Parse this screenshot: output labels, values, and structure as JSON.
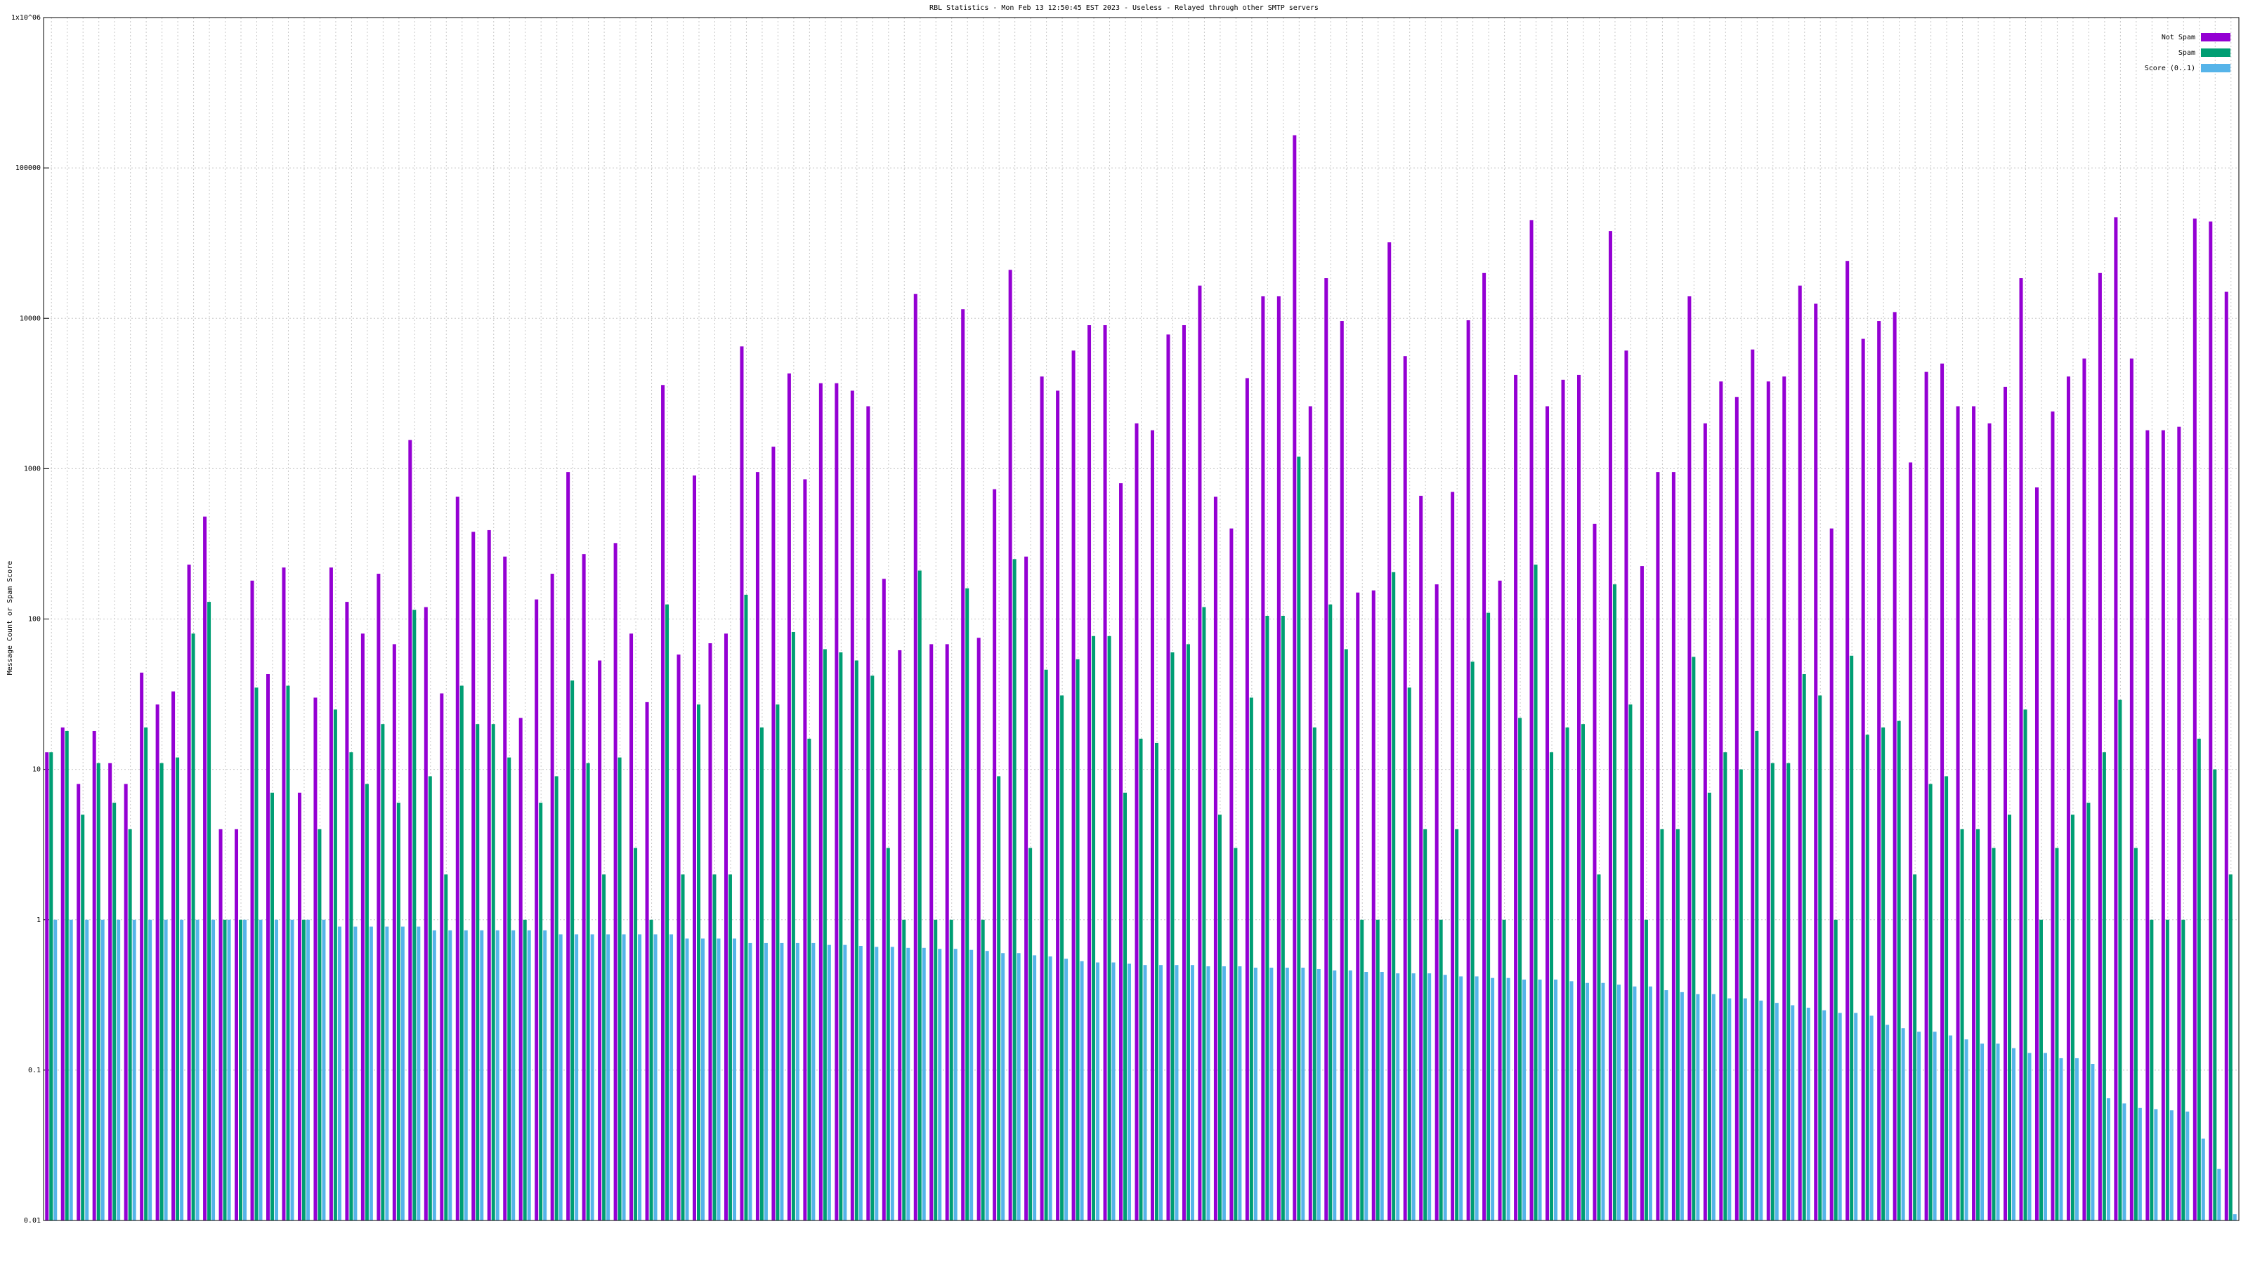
{
  "chart_data": {
    "type": "bar",
    "title": "RBL Statistics - Mon Feb 13 12:50:45 EST 2023 - Useless - Relayed through other SMTP servers",
    "y_label": "Message Count or Spam Score",
    "log_scale": true,
    "grid": true,
    "legend": "top right",
    "ylim": [
      0.01,
      1000000
    ],
    "yticks": [
      0.01,
      0.1,
      1,
      10,
      100,
      1000,
      10000,
      100000,
      {
        "value": 1000000,
        "label": "1x10^06"
      }
    ],
    "categories": [
      null,
      null,
      null,
      null,
      null,
      null,
      null,
      null,
      null,
      null,
      null,
      null,
      null,
      null,
      null,
      null,
      null,
      null,
      null,
      null,
      null,
      null,
      null,
      null,
      null,
      null,
      null,
      null,
      null,
      null,
      null,
      null,
      null,
      null,
      null,
      null,
      null,
      null,
      null,
      null,
      null,
      null,
      null,
      null,
      null,
      null,
      null,
      null,
      null,
      null,
      null,
      null,
      null,
      null,
      null,
      null,
      null,
      null,
      null,
      null,
      null,
      null,
      null,
      null,
      null,
      null,
      null,
      null,
      null,
      null,
      null,
      null,
      null,
      null,
      null,
      null,
      null,
      null,
      null,
      null,
      null,
      null,
      null,
      null,
      null,
      null,
      null,
      null,
      null,
      null,
      null,
      null,
      null,
      null,
      null,
      null,
      null,
      null,
      null,
      null,
      null,
      null,
      null,
      null,
      null,
      null,
      null,
      null,
      null,
      null,
      null,
      null,
      null,
      null,
      null,
      null,
      null,
      null,
      null,
      null,
      null,
      null,
      null,
      null,
      null,
      null,
      null,
      null,
      null,
      null,
      null,
      null,
      null,
      null,
      null,
      null,
      null,
      null,
      null
    ],
    "series": [
      {
        "name": "Not Spam",
        "color": "#9400d3",
        "values": [
          13,
          19,
          8,
          18,
          11,
          8,
          44,
          27,
          33,
          230,
          480,
          4,
          4,
          180,
          43,
          220,
          7,
          30,
          220,
          130,
          80,
          200,
          68,
          1550,
          120,
          32,
          650,
          380,
          390,
          260,
          22,
          135,
          200,
          950,
          270,
          53,
          320,
          80,
          28,
          3600,
          58,
          900,
          69,
          80,
          6500,
          950,
          1400,
          4300,
          850,
          3700,
          3700,
          3300,
          2600,
          185,
          62,
          14500,
          68,
          68,
          11500,
          75,
          730,
          21000,
          260,
          4100,
          3300,
          6100,
          9000,
          9000,
          800,
          2000,
          1800,
          7800,
          9000,
          16500,
          650,
          400,
          4000,
          14000,
          14000,
          165000,
          2600,
          18500,
          9600,
          150,
          155,
          32000,
          5600,
          660,
          170,
          700,
          9700,
          20000,
          180,
          4200,
          45000,
          2600,
          3900,
          4200,
          430,
          38000,
          6100,
          225,
          950,
          950,
          14000,
          2000,
          3800,
          3000,
          6200,
          3800,
          4100,
          16500,
          12500,
          400,
          24000,
          7300,
          9600,
          11000,
          1100,
          4400,
          5000,
          2600,
          2600,
          2000,
          3500,
          18500,
          750,
          2400,
          4100,
          5400,
          20000,
          47000,
          5400,
          1800,
          1800,
          1900,
          46000,
          44000,
          15000
        ]
      },
      {
        "name": "Spam",
        "color": "#009e73",
        "values": [
          13,
          18,
          5,
          11,
          6,
          4,
          19,
          11,
          12,
          80,
          130,
          1,
          1,
          35,
          7,
          36,
          1,
          4,
          25,
          13,
          8,
          20,
          6,
          115,
          9,
          2,
          36,
          20,
          20,
          12,
          1,
          6,
          9,
          39,
          11,
          2,
          12,
          3,
          1,
          125,
          2,
          27,
          2,
          2,
          145,
          19,
          27,
          82,
          16,
          63,
          60,
          53,
          42,
          3,
          1,
          210,
          1,
          1,
          160,
          1,
          9,
          250,
          3,
          46,
          31,
          54,
          77,
          77,
          7,
          16,
          15,
          60,
          68,
          120,
          5,
          3,
          30,
          105,
          105,
          1200,
          19,
          125,
          63,
          1,
          1,
          205,
          35,
          4,
          1,
          4,
          52,
          110,
          1,
          22,
          230,
          13,
          19,
          20,
          2,
          170,
          27,
          1,
          4,
          4,
          56,
          7,
          13,
          10,
          18,
          11,
          11,
          43,
          31,
          1,
          57,
          17,
          19,
          21,
          2,
          8,
          9,
          4,
          4,
          3,
          5,
          25,
          1,
          3,
          5,
          6,
          13,
          29,
          3,
          1,
          1,
          1,
          16,
          10,
          2
        ]
      },
      {
        "name": "Score (0..1)",
        "color": "#56b4e9",
        "values": [
          1,
          1,
          1,
          1,
          1,
          1,
          1,
          1,
          1,
          1,
          1,
          1,
          1,
          1,
          1,
          1,
          1,
          1,
          0.9,
          0.9,
          0.9,
          0.9,
          0.9,
          0.9,
          0.85,
          0.85,
          0.85,
          0.85,
          0.85,
          0.85,
          0.85,
          0.85,
          0.8,
          0.8,
          0.8,
          0.8,
          0.8,
          0.8,
          0.8,
          0.8,
          0.75,
          0.75,
          0.75,
          0.75,
          0.7,
          0.7,
          0.7,
          0.7,
          0.7,
          0.68,
          0.68,
          0.67,
          0.66,
          0.66,
          0.65,
          0.65,
          0.64,
          0.64,
          0.63,
          0.62,
          0.6,
          0.6,
          0.58,
          0.57,
          0.55,
          0.53,
          0.52,
          0.52,
          0.51,
          0.5,
          0.5,
          0.5,
          0.5,
          0.49,
          0.49,
          0.49,
          0.48,
          0.48,
          0.48,
          0.48,
          0.47,
          0.46,
          0.46,
          0.45,
          0.45,
          0.44,
          0.44,
          0.44,
          0.43,
          0.42,
          0.42,
          0.41,
          0.41,
          0.4,
          0.4,
          0.4,
          0.39,
          0.38,
          0.38,
          0.37,
          0.36,
          0.36,
          0.34,
          0.33,
          0.32,
          0.32,
          0.3,
          0.3,
          0.29,
          0.28,
          0.27,
          0.26,
          0.25,
          0.24,
          0.24,
          0.23,
          0.2,
          0.19,
          0.18,
          0.18,
          0.17,
          0.16,
          0.15,
          0.15,
          0.14,
          0.13,
          0.13,
          0.12,
          0.12,
          0.11,
          0.065,
          0.06,
          0.056,
          0.055,
          0.054,
          0.053,
          0.035,
          0.022,
          0.011
        ]
      }
    ]
  }
}
